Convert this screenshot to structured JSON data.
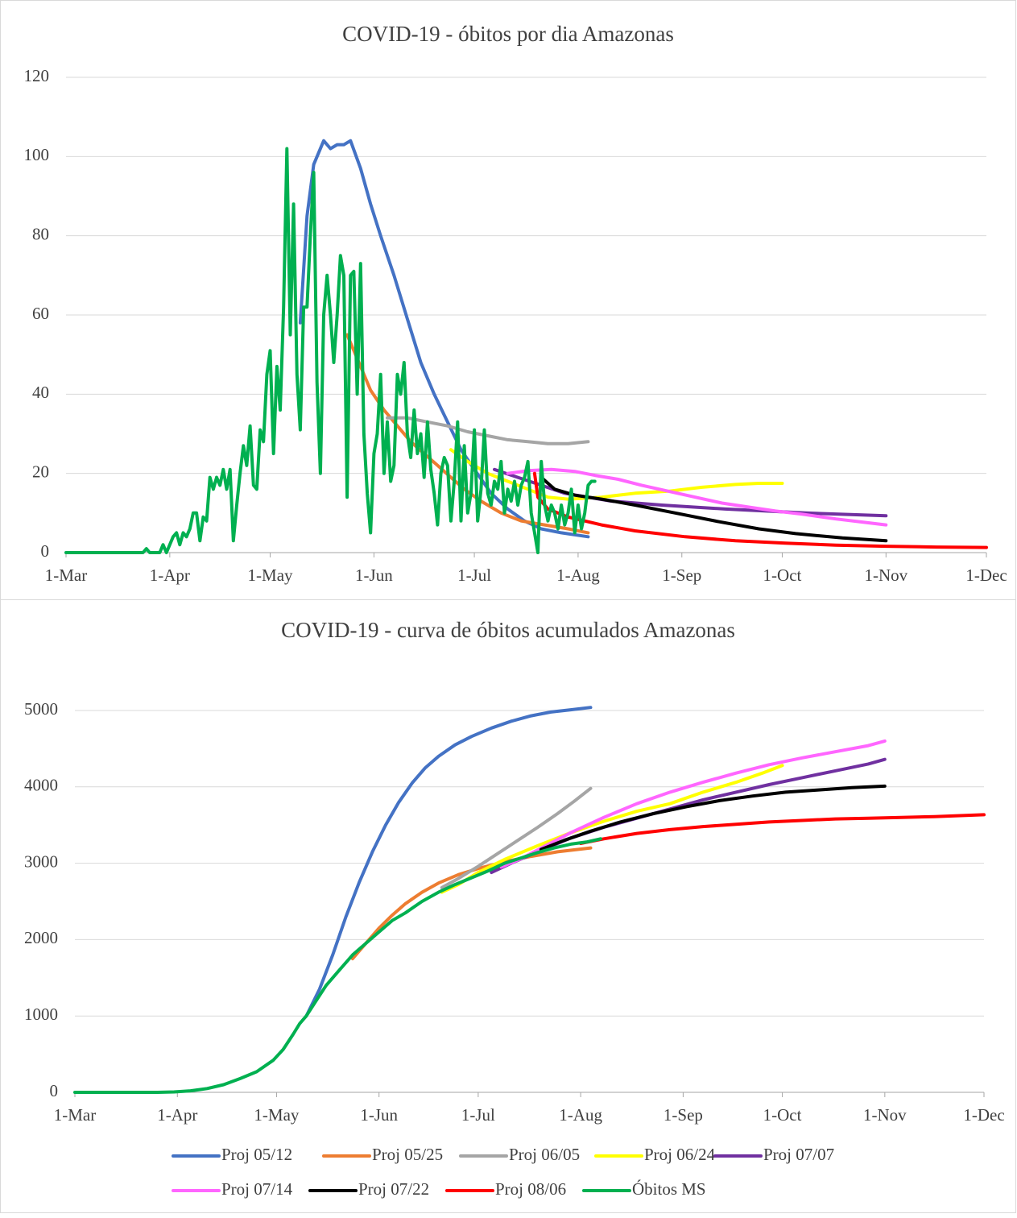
{
  "chart_data": [
    {
      "type": "line",
      "title": "COVID-19 - óbitos por dia Amazonas",
      "xlim": [
        0,
        275
      ],
      "xticks": [
        {
          "value": 0,
          "label": "1-Mar"
        },
        {
          "value": 31,
          "label": "1-Apr"
        },
        {
          "value": 61,
          "label": "1-May"
        },
        {
          "value": 92,
          "label": "1-Jun"
        },
        {
          "value": 122,
          "label": "1-Jul"
        },
        {
          "value": 153,
          "label": "1-Aug"
        },
        {
          "value": 184,
          "label": "1-Sep"
        },
        {
          "value": 214,
          "label": "1-Oct"
        },
        {
          "value": 245,
          "label": "1-Nov"
        },
        {
          "value": 275,
          "label": "1-Dec"
        }
      ],
      "ylim": [
        0,
        120
      ],
      "yticks": [
        0,
        20,
        40,
        60,
        80,
        100,
        120
      ],
      "grid": true,
      "series": [
        {
          "color": "#4472c4",
          "x": [
            70,
            72,
            74,
            77,
            79,
            81,
            83,
            85,
            88,
            91,
            94,
            98,
            102,
            106,
            110,
            114,
            118,
            122,
            127,
            132,
            137,
            142,
            148,
            156
          ],
          "values": [
            58,
            85,
            98,
            104,
            102,
            103,
            103,
            104,
            97,
            88,
            80,
            70,
            59,
            48,
            40,
            33,
            26,
            21,
            15,
            11,
            8,
            6,
            5,
            4
          ]
        },
        {
          "color": "#ed7d31",
          "x": [
            84,
            88,
            91,
            95,
            99,
            103,
            107,
            111,
            115,
            119,
            124,
            130,
            136,
            143,
            150,
            156
          ],
          "values": [
            55,
            47,
            41,
            36,
            32,
            28,
            25,
            22,
            19,
            16,
            13,
            10,
            8,
            7,
            6,
            5
          ]
        },
        {
          "color": "#a5a5a5",
          "x": [
            96,
            102,
            108,
            114,
            120,
            126,
            132,
            138,
            144,
            150,
            156
          ],
          "values": [
            34,
            34,
            33,
            32,
            30.5,
            29.5,
            28.5,
            28,
            27.5,
            27.5,
            28
          ]
        },
        {
          "color": "#ffff00",
          "x": [
            115,
            120,
            126,
            132,
            138,
            144,
            150,
            160,
            170,
            180,
            190,
            200,
            207,
            214
          ],
          "values": [
            26,
            23,
            20,
            18,
            16,
            14,
            13.5,
            14,
            15,
            15.5,
            16.5,
            17.2,
            17.5,
            17.5
          ]
        },
        {
          "color": "#7030a0",
          "x": [
            128,
            135,
            142,
            149,
            163,
            178,
            197,
            221,
            245
          ],
          "values": [
            21,
            19,
            17,
            15,
            13,
            12,
            11,
            10,
            9.3
          ]
        },
        {
          "color": "#ff66ff",
          "x": [
            132,
            138,
            145,
            152,
            158,
            165,
            172,
            180,
            188,
            196,
            204,
            212,
            220,
            230,
            238,
            245
          ],
          "values": [
            20,
            20.7,
            21,
            20.5,
            19.5,
            18.5,
            17,
            15.5,
            14,
            12.5,
            11.5,
            10.5,
            9.7,
            8.5,
            7.7,
            7
          ]
        },
        {
          "color": "#000000",
          "x": [
            142,
            146,
            152,
            160,
            170,
            182,
            195,
            207,
            218,
            232,
            245
          ],
          "values": [
            19,
            16,
            14.5,
            13.5,
            12,
            10,
            7.8,
            6,
            4.8,
            3.7,
            3
          ]
        },
        {
          "color": "#ff0000",
          "x": [
            140,
            141,
            144,
            150,
            160,
            170,
            185,
            200,
            215,
            230,
            245,
            260,
            275
          ],
          "values": [
            20,
            14,
            11,
            9,
            7,
            5.5,
            4,
            3,
            2.4,
            1.9,
            1.6,
            1.4,
            1.3
          ]
        },
        {
          "color": "#00b050",
          "x": [
            0,
            23,
            24,
            25,
            28,
            29,
            30,
            32,
            33,
            34,
            35,
            36,
            37,
            38,
            39,
            40,
            41,
            42,
            43,
            44,
            45,
            46,
            47,
            48,
            49,
            50,
            51,
            52,
            53,
            54,
            55,
            56,
            57,
            58,
            59,
            60,
            61,
            62,
            63,
            64,
            65,
            66,
            67,
            68,
            69,
            70,
            71,
            72,
            73,
            74,
            75,
            76,
            77,
            78,
            79,
            80,
            81,
            82,
            83,
            84,
            85,
            86,
            87,
            88,
            89,
            90,
            91,
            92,
            93,
            94,
            95,
            96,
            97,
            98,
            99,
            100,
            101,
            102,
            103,
            104,
            105,
            106,
            107,
            108,
            109,
            110,
            111,
            112,
            113,
            114,
            115,
            116,
            117,
            118,
            119,
            120,
            121,
            122,
            123,
            124,
            125,
            126,
            127,
            128,
            129,
            130,
            131,
            132,
            133,
            134,
            135,
            136,
            137,
            138,
            139,
            140,
            141,
            142,
            143,
            144,
            145,
            146,
            147,
            148,
            149,
            150,
            151,
            152,
            153,
            154,
            155,
            156,
            157,
            158
          ],
          "values": [
            0,
            0,
            1,
            0,
            0,
            2,
            0,
            4,
            5,
            2,
            5,
            4,
            6,
            10,
            10,
            3,
            9,
            8,
            19,
            16,
            19,
            17,
            21,
            16,
            21,
            3,
            12,
            20,
            27,
            22,
            32,
            17,
            16,
            31,
            28,
            45,
            51,
            25,
            47,
            36,
            62,
            102,
            55,
            88,
            45,
            31,
            62,
            62,
            80,
            96,
            43,
            20,
            60,
            70,
            60,
            48,
            60,
            75,
            70,
            14,
            70,
            71,
            40,
            73,
            30,
            15,
            5,
            25,
            30,
            45,
            20,
            33,
            18,
            22,
            45,
            40,
            48,
            30,
            24,
            36,
            25,
            30,
            19,
            33,
            21,
            15,
            7,
            20,
            24,
            22,
            8,
            18,
            33,
            8,
            27,
            10,
            15,
            31,
            8,
            16,
            31,
            15,
            12,
            18,
            16,
            23,
            10,
            16,
            13,
            18,
            12,
            17,
            19,
            23,
            10,
            5,
            0,
            23,
            12,
            8,
            12,
            10,
            6,
            12,
            7,
            10,
            16,
            5,
            12,
            6,
            10,
            17,
            18,
            18
          ]
        }
      ]
    },
    {
      "type": "line",
      "title": "COVID-19 - curva de óbitos acumulados Amazonas",
      "xlim": [
        0,
        275
      ],
      "xticks": [
        {
          "value": 0,
          "label": "1-Mar"
        },
        {
          "value": 31,
          "label": "1-Apr"
        },
        {
          "value": 61,
          "label": "1-May"
        },
        {
          "value": 92,
          "label": "1-Jun"
        },
        {
          "value": 122,
          "label": "1-Jul"
        },
        {
          "value": 153,
          "label": "1-Aug"
        },
        {
          "value": 184,
          "label": "1-Sep"
        },
        {
          "value": 214,
          "label": "1-Oct"
        },
        {
          "value": 245,
          "label": "1-Nov"
        },
        {
          "value": 275,
          "label": "1-Dec"
        }
      ],
      "ylim": [
        0,
        5000
      ],
      "yticks": [
        0,
        1000,
        2000,
        3000,
        4000,
        5000
      ],
      "grid": true,
      "series": [
        {
          "name": "Proj 05/12",
          "color": "#4472c4",
          "x": [
            70,
            74,
            78,
            82,
            86,
            90,
            94,
            98,
            102,
            106,
            110,
            115,
            120,
            126,
            132,
            138,
            144,
            150,
            156
          ],
          "values": [
            1000,
            1350,
            1800,
            2300,
            2750,
            3150,
            3500,
            3800,
            4050,
            4250,
            4400,
            4550,
            4660,
            4770,
            4860,
            4930,
            4980,
            5010,
            5040
          ]
        },
        {
          "name": "Proj 05/25",
          "color": "#ed7d31",
          "x": [
            84,
            88,
            92,
            96,
            100,
            105,
            110,
            116,
            122,
            130,
            138,
            146,
            156
          ],
          "values": [
            1750,
            1950,
            2150,
            2320,
            2470,
            2620,
            2740,
            2850,
            2930,
            3020,
            3090,
            3150,
            3200
          ]
        },
        {
          "name": "Proj 06/05",
          "color": "#a5a5a5",
          "x": [
            111,
            116,
            122,
            128,
            134,
            140,
            146,
            151,
            156
          ],
          "values": [
            2680,
            2800,
            2960,
            3130,
            3300,
            3470,
            3650,
            3810,
            3980
          ]
        },
        {
          "name": "Proj 06/24",
          "color": "#ffff00",
          "x": [
            111,
            116,
            122,
            130,
            140,
            150,
            160,
            170,
            180,
            190,
            200,
            208,
            214
          ],
          "values": [
            2620,
            2720,
            2880,
            3050,
            3230,
            3400,
            3550,
            3680,
            3780,
            3930,
            4060,
            4180,
            4280
          ]
        },
        {
          "name": "Proj 07/07",
          "color": "#7030a0",
          "x": [
            126,
            132,
            140,
            150,
            160,
            170,
            180,
            190,
            200,
            210,
            220,
            230,
            240,
            245
          ],
          "values": [
            2880,
            3000,
            3150,
            3330,
            3470,
            3590,
            3710,
            3830,
            3930,
            4030,
            4120,
            4210,
            4300,
            4360
          ]
        },
        {
          "name": "Proj 07/14",
          "color": "#ff66ff",
          "x": [
            129,
            135,
            142,
            150,
            160,
            170,
            180,
            190,
            200,
            210,
            220,
            230,
            240,
            245
          ],
          "values": [
            2950,
            3060,
            3220,
            3400,
            3600,
            3780,
            3930,
            4060,
            4180,
            4290,
            4380,
            4460,
            4540,
            4600
          ]
        },
        {
          "name": "Proj 07/22",
          "color": "#000000",
          "x": [
            141,
            148,
            156,
            165,
            175,
            185,
            195,
            205,
            215,
            225,
            235,
            245
          ],
          "values": [
            3180,
            3300,
            3420,
            3540,
            3650,
            3740,
            3820,
            3880,
            3930,
            3960,
            3990,
            4010
          ]
        },
        {
          "name": "Proj 08/06",
          "color": "#ff0000",
          "x": [
            153,
            160,
            170,
            180,
            190,
            200,
            210,
            220,
            230,
            240,
            250,
            260,
            275
          ],
          "values": [
            3260,
            3320,
            3390,
            3440,
            3480,
            3510,
            3540,
            3560,
            3580,
            3590,
            3600,
            3610,
            3635
          ]
        },
        {
          "name": "Óbitos MS",
          "color": "#00b050",
          "x": [
            0,
            25,
            30,
            35,
            40,
            45,
            50,
            55,
            60,
            63,
            66,
            68,
            70,
            73,
            76,
            80,
            84,
            88,
            92,
            96,
            100,
            105,
            110,
            115,
            120,
            125,
            130,
            135,
            140,
            145,
            150,
            155,
            159
          ],
          "values": [
            0,
            0,
            5,
            20,
            50,
            100,
            180,
            270,
            420,
            560,
            760,
            900,
            1000,
            1200,
            1400,
            1600,
            1800,
            1950,
            2100,
            2250,
            2350,
            2500,
            2620,
            2720,
            2810,
            2900,
            3000,
            3070,
            3140,
            3200,
            3250,
            3280,
            3320
          ]
        }
      ]
    }
  ]
}
